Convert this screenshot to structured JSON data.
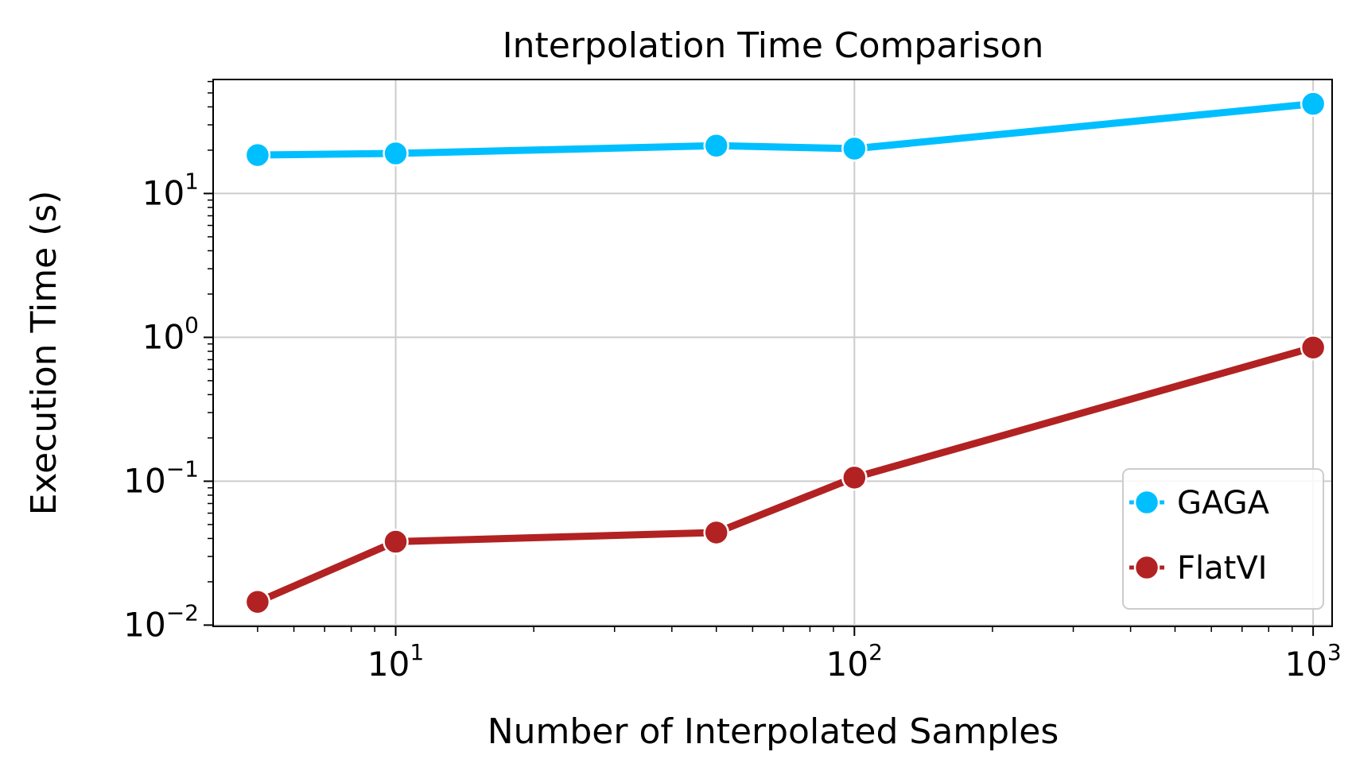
{
  "chart_data": {
    "type": "line",
    "title": "Interpolation Time Comparison",
    "xlabel": "Number of Interpolated Samples",
    "ylabel": "Execution Time (s)",
    "x_scale": "log",
    "y_scale": "log",
    "xlim": [
      4,
      1100
    ],
    "ylim": [
      0.0098,
      62
    ],
    "x_ticks": [
      {
        "value": 10,
        "base": "10",
        "exp": "1"
      },
      {
        "value": 100,
        "base": "10",
        "exp": "2"
      },
      {
        "value": 1000,
        "base": "10",
        "exp": "3"
      }
    ],
    "y_ticks": [
      {
        "value": 0.01,
        "base": "10",
        "exp": "−2"
      },
      {
        "value": 0.1,
        "base": "10",
        "exp": "−1"
      },
      {
        "value": 1,
        "base": "10",
        "exp": "0"
      },
      {
        "value": 10,
        "base": "10",
        "exp": "1"
      }
    ],
    "grid": true,
    "legend_position": "lower-right",
    "series": [
      {
        "name": "GAGA",
        "color": "#00bfff",
        "x": [
          5,
          10,
          50,
          100,
          1000
        ],
        "y": [
          18.5,
          19.0,
          21.5,
          20.5,
          42.0
        ]
      },
      {
        "name": "FlatVI",
        "color": "#b22222",
        "x": [
          5,
          10,
          50,
          100,
          1000
        ],
        "y": [
          0.0145,
          0.038,
          0.044,
          0.106,
          0.85
        ]
      }
    ]
  }
}
